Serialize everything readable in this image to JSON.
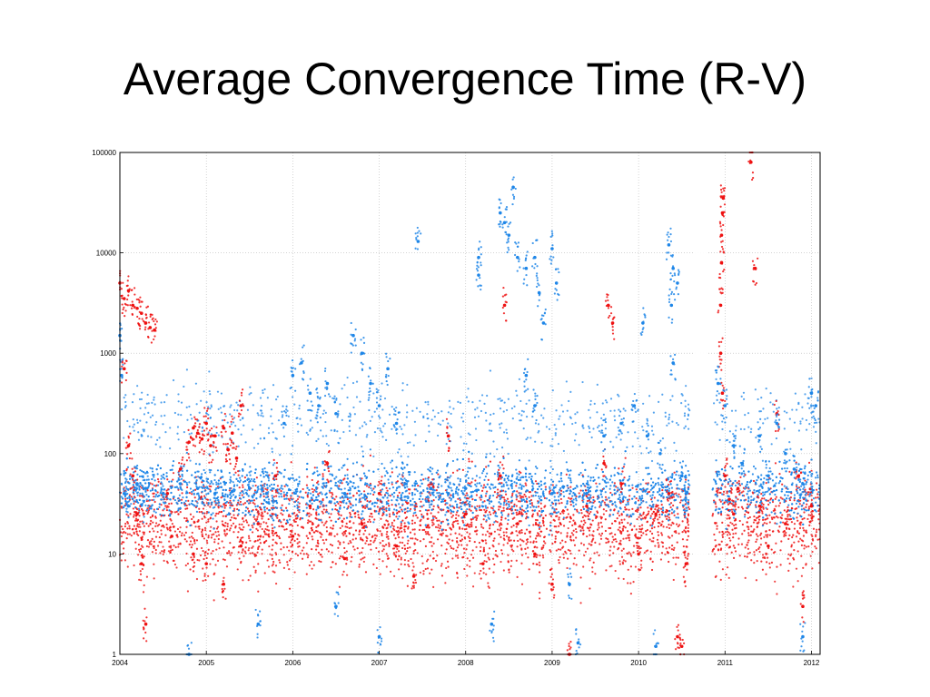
{
  "slide": {
    "title": "Average Convergence Time (R-V)"
  },
  "chart_data": {
    "type": "scatter",
    "title": "",
    "xlabel": "",
    "ylabel": "",
    "xscale": "linear",
    "yscale": "log",
    "xlim": [
      2004,
      2012.1
    ],
    "ylim": [
      1,
      100000
    ],
    "grid": true,
    "x_ticks": [
      {
        "value": 2004,
        "label": "2004"
      },
      {
        "value": 2005,
        "label": "2005"
      },
      {
        "value": 2006,
        "label": "2006"
      },
      {
        "value": 2007,
        "label": "2007"
      },
      {
        "value": 2008,
        "label": "2008"
      },
      {
        "value": 2009,
        "label": "2009"
      },
      {
        "value": 2010,
        "label": "2010"
      },
      {
        "value": 2011,
        "label": "2011"
      },
      {
        "value": 2012,
        "label": "2012"
      }
    ],
    "y_ticks": [
      {
        "value": 1,
        "label": "1"
      },
      {
        "value": 10,
        "label": "10"
      },
      {
        "value": 100,
        "label": "100"
      },
      {
        "value": 1000,
        "label": "1000"
      },
      {
        "value": 10000,
        "label": "10000"
      },
      {
        "value": 100000,
        "label": "100000"
      }
    ],
    "gap": [
      2010.6,
      2010.85
    ],
    "series": [
      {
        "color": "#ee1111",
        "points": [
          {
            "x": 2004.0,
            "y": 5000
          },
          {
            "x": 2004.05,
            "y": 3500
          },
          {
            "x": 2004.1,
            "y": 4200
          },
          {
            "x": 2004.15,
            "y": 3000
          },
          {
            "x": 2004.2,
            "y": 2800
          },
          {
            "x": 2004.25,
            "y": 2500
          },
          {
            "x": 2004.3,
            "y": 2000
          },
          {
            "x": 2004.35,
            "y": 1800
          },
          {
            "x": 2004.4,
            "y": 1700
          },
          {
            "x": 2004.05,
            "y": 700
          },
          {
            "x": 2004.1,
            "y": 120
          },
          {
            "x": 2004.15,
            "y": 60
          },
          {
            "x": 2004.2,
            "y": 25
          },
          {
            "x": 2004.25,
            "y": 8
          },
          {
            "x": 2004.3,
            "y": 2
          },
          {
            "x": 2004.55,
            "y": 40
          },
          {
            "x": 2004.6,
            "y": 15
          },
          {
            "x": 2004.7,
            "y": 70
          },
          {
            "x": 2004.8,
            "y": 130
          },
          {
            "x": 2004.85,
            "y": 180
          },
          {
            "x": 2004.9,
            "y": 160
          },
          {
            "x": 2004.95,
            "y": 140
          },
          {
            "x": 2005.0,
            "y": 200
          },
          {
            "x": 2005.05,
            "y": 120
          },
          {
            "x": 2005.1,
            "y": 150
          },
          {
            "x": 2005.2,
            "y": 180
          },
          {
            "x": 2005.25,
            "y": 110
          },
          {
            "x": 2005.3,
            "y": 160
          },
          {
            "x": 2005.35,
            "y": 90
          },
          {
            "x": 2005.4,
            "y": 300
          },
          {
            "x": 2004.85,
            "y": 10
          },
          {
            "x": 2005.0,
            "y": 8
          },
          {
            "x": 2005.2,
            "y": 5
          },
          {
            "x": 2005.4,
            "y": 12
          },
          {
            "x": 2005.6,
            "y": 20
          },
          {
            "x": 2005.8,
            "y": 60
          },
          {
            "x": 2006.0,
            "y": 15
          },
          {
            "x": 2006.2,
            "y": 30
          },
          {
            "x": 2006.4,
            "y": 80
          },
          {
            "x": 2006.6,
            "y": 9
          },
          {
            "x": 2006.8,
            "y": 20
          },
          {
            "x": 2007.0,
            "y": 40
          },
          {
            "x": 2007.2,
            "y": 12
          },
          {
            "x": 2007.4,
            "y": 6
          },
          {
            "x": 2007.6,
            "y": 50
          },
          {
            "x": 2007.8,
            "y": 150
          },
          {
            "x": 2008.0,
            "y": 25
          },
          {
            "x": 2008.2,
            "y": 8
          },
          {
            "x": 2008.4,
            "y": 60
          },
          {
            "x": 2008.45,
            "y": 3000
          },
          {
            "x": 2008.6,
            "y": 20
          },
          {
            "x": 2008.8,
            "y": 10
          },
          {
            "x": 2009.0,
            "y": 5
          },
          {
            "x": 2009.2,
            "y": 1
          },
          {
            "x": 2009.4,
            "y": 30
          },
          {
            "x": 2009.6,
            "y": 80
          },
          {
            "x": 2009.65,
            "y": 3000
          },
          {
            "x": 2009.7,
            "y": 2000
          },
          {
            "x": 2009.8,
            "y": 50
          },
          {
            "x": 2010.0,
            "y": 10
          },
          {
            "x": 2010.2,
            "y": 25
          },
          {
            "x": 2010.35,
            "y": 40
          },
          {
            "x": 2010.45,
            "y": 1.5
          },
          {
            "x": 2010.5,
            "y": 1.2
          },
          {
            "x": 2010.55,
            "y": 8
          },
          {
            "x": 2010.98,
            "y": 35000
          },
          {
            "x": 2010.97,
            "y": 25000
          },
          {
            "x": 2010.96,
            "y": 15000
          },
          {
            "x": 2010.96,
            "y": 8000
          },
          {
            "x": 2010.95,
            "y": 3000
          },
          {
            "x": 2010.95,
            "y": 1000
          },
          {
            "x": 2010.97,
            "y": 400
          },
          {
            "x": 2011.0,
            "y": 60
          },
          {
            "x": 2011.05,
            "y": 35
          },
          {
            "x": 2011.1,
            "y": 25
          },
          {
            "x": 2011.15,
            "y": 45
          },
          {
            "x": 2011.3,
            "y": 80000
          },
          {
            "x": 2011.35,
            "y": 7000
          },
          {
            "x": 2011.4,
            "y": 30
          },
          {
            "x": 2011.5,
            "y": 12
          },
          {
            "x": 2011.6,
            "y": 250
          },
          {
            "x": 2011.7,
            "y": 20
          },
          {
            "x": 2011.85,
            "y": 60
          },
          {
            "x": 2011.9,
            "y": 3
          },
          {
            "x": 2012.0,
            "y": 30
          }
        ]
      },
      {
        "color": "#1e86e8",
        "points": [
          {
            "x": 2004.0,
            "y": 1500
          },
          {
            "x": 2004.02,
            "y": 600
          },
          {
            "x": 2004.05,
            "y": 40
          },
          {
            "x": 2004.1,
            "y": 30
          },
          {
            "x": 2004.2,
            "y": 50
          },
          {
            "x": 2004.3,
            "y": 45
          },
          {
            "x": 2004.5,
            "y": 40
          },
          {
            "x": 2004.7,
            "y": 50
          },
          {
            "x": 2004.9,
            "y": 45
          },
          {
            "x": 2005.1,
            "y": 40
          },
          {
            "x": 2005.3,
            "y": 42
          },
          {
            "x": 2005.5,
            "y": 45
          },
          {
            "x": 2005.7,
            "y": 40
          },
          {
            "x": 2005.9,
            "y": 200
          },
          {
            "x": 2006.0,
            "y": 600
          },
          {
            "x": 2006.1,
            "y": 800
          },
          {
            "x": 2006.2,
            "y": 400
          },
          {
            "x": 2006.3,
            "y": 300
          },
          {
            "x": 2006.4,
            "y": 500
          },
          {
            "x": 2006.5,
            "y": 250
          },
          {
            "x": 2006.6,
            "y": 40
          },
          {
            "x": 2006.7,
            "y": 1500
          },
          {
            "x": 2006.8,
            "y": 1000
          },
          {
            "x": 2006.9,
            "y": 500
          },
          {
            "x": 2007.0,
            "y": 300
          },
          {
            "x": 2007.1,
            "y": 700
          },
          {
            "x": 2007.2,
            "y": 200
          },
          {
            "x": 2007.3,
            "y": 50
          },
          {
            "x": 2007.45,
            "y": 13000
          },
          {
            "x": 2007.6,
            "y": 45
          },
          {
            "x": 2007.8,
            "y": 40
          },
          {
            "x": 2008.0,
            "y": 45
          },
          {
            "x": 2008.15,
            "y": 9000
          },
          {
            "x": 2008.15,
            "y": 6000
          },
          {
            "x": 2008.4,
            "y": 25000
          },
          {
            "x": 2008.45,
            "y": 20000
          },
          {
            "x": 2008.5,
            "y": 15000
          },
          {
            "x": 2008.55,
            "y": 45000
          },
          {
            "x": 2008.6,
            "y": 9000
          },
          {
            "x": 2008.7,
            "y": 7000
          },
          {
            "x": 2008.8,
            "y": 9000
          },
          {
            "x": 2008.85,
            "y": 4000
          },
          {
            "x": 2008.9,
            "y": 2000
          },
          {
            "x": 2009.0,
            "y": 11000
          },
          {
            "x": 2009.05,
            "y": 5000
          },
          {
            "x": 2008.7,
            "y": 600
          },
          {
            "x": 2008.8,
            "y": 300
          },
          {
            "x": 2009.0,
            "y": 40
          },
          {
            "x": 2009.2,
            "y": 5
          },
          {
            "x": 2009.4,
            "y": 40
          },
          {
            "x": 2009.6,
            "y": 150
          },
          {
            "x": 2009.8,
            "y": 200
          },
          {
            "x": 2009.95,
            "y": 300
          },
          {
            "x": 2010.05,
            "y": 2000
          },
          {
            "x": 2010.1,
            "y": 150
          },
          {
            "x": 2010.25,
            "y": 100
          },
          {
            "x": 2010.35,
            "y": 12000
          },
          {
            "x": 2010.4,
            "y": 7000
          },
          {
            "x": 2010.45,
            "y": 5000
          },
          {
            "x": 2010.38,
            "y": 3000
          },
          {
            "x": 2010.4,
            "y": 800
          },
          {
            "x": 2010.5,
            "y": 60
          },
          {
            "x": 2010.55,
            "y": 40
          },
          {
            "x": 2010.92,
            "y": 500
          },
          {
            "x": 2011.0,
            "y": 300
          },
          {
            "x": 2011.1,
            "y": 120
          },
          {
            "x": 2011.2,
            "y": 80
          },
          {
            "x": 2011.4,
            "y": 150
          },
          {
            "x": 2011.5,
            "y": 60
          },
          {
            "x": 2011.6,
            "y": 200
          },
          {
            "x": 2011.7,
            "y": 100
          },
          {
            "x": 2011.8,
            "y": 70
          },
          {
            "x": 2011.9,
            "y": 50
          },
          {
            "x": 2012.0,
            "y": 400
          },
          {
            "x": 2012.05,
            "y": 300
          },
          {
            "x": 2004.8,
            "y": 1
          },
          {
            "x": 2005.6,
            "y": 2
          },
          {
            "x": 2006.5,
            "y": 3
          },
          {
            "x": 2007.0,
            "y": 1.5
          },
          {
            "x": 2008.3,
            "y": 2
          },
          {
            "x": 2009.3,
            "y": 1.3
          },
          {
            "x": 2010.2,
            "y": 1.2
          },
          {
            "x": 2011.9,
            "y": 1.5
          }
        ]
      }
    ]
  }
}
